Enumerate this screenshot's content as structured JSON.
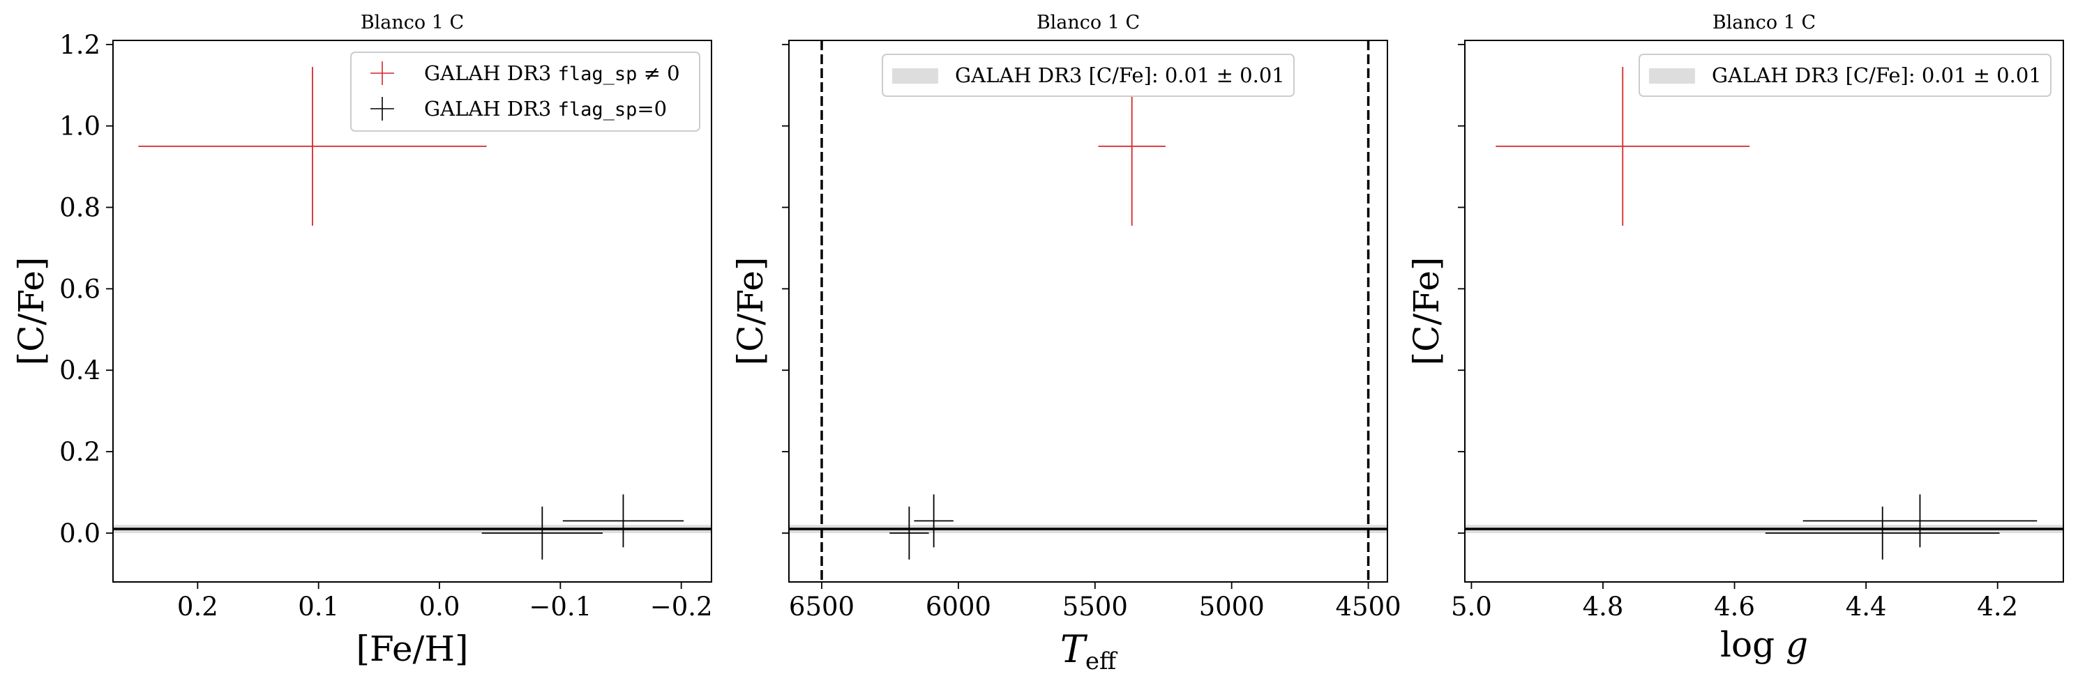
{
  "chart_data": [
    {
      "type": "scatter",
      "title": "Blanco 1 C",
      "xlabel": "[Fe/H]",
      "ylabel": "[C/Fe]",
      "xlim": [
        0.27,
        -0.225
      ],
      "ylim": [
        -0.12,
        1.21
      ],
      "xticks": [
        0.2,
        0.1,
        0.0,
        -0.1,
        -0.2
      ],
      "xtick_labels": [
        "0.2",
        "0.1",
        "0.0",
        "−0.1",
        "−0.2"
      ],
      "yticks": [
        0.0,
        0.2,
        0.4,
        0.6,
        0.8,
        1.0,
        1.2
      ],
      "ytick_labels": [
        "0.0",
        "0.2",
        "0.4",
        "0.6",
        "0.8",
        "1.0",
        "1.2"
      ],
      "show_yticklabels": true,
      "hline": 0.01,
      "hband": [
        0.0,
        0.02
      ],
      "vlines": [],
      "legend": {
        "placement": "top-right",
        "entries": [
          {
            "type": "cross",
            "color": "#d62728",
            "text": "GALAH DR3 ",
            "code": "flag_sp",
            "suffix": " ≠ 0"
          },
          {
            "type": "cross",
            "color": "#000000",
            "text": "GALAH DR3 ",
            "code": "flag_sp",
            "suffix": "=0"
          }
        ]
      },
      "series": [
        {
          "color": "#d62728",
          "points": [
            {
              "x": 0.105,
              "y": 0.95,
              "xerr": [
                0.144,
                0.144
              ],
              "yerr": [
                0.195,
                0.195
              ]
            }
          ]
        },
        {
          "color": "#000000",
          "points": [
            {
              "x": -0.085,
              "y": 0.0,
              "xerr": [
                0.05,
                0.05
              ],
              "yerr": [
                0.065,
                0.065
              ]
            },
            {
              "x": -0.152,
              "y": 0.03,
              "xerr": [
                0.05,
                0.05
              ],
              "yerr": [
                0.065,
                0.065
              ]
            }
          ]
        }
      ]
    },
    {
      "type": "scatter",
      "title": "Blanco 1 C",
      "xlabel": "T_eff",
      "ylabel": "[C/Fe]",
      "xlim": [
        6620,
        4430
      ],
      "ylim": [
        -0.12,
        1.21
      ],
      "xticks": [
        6500,
        6000,
        5500,
        5000,
        4500
      ],
      "xtick_labels": [
        "6500",
        "6000",
        "5500",
        "5000",
        "4500"
      ],
      "yticks": [
        0.0,
        0.2,
        0.4,
        0.6,
        0.8,
        1.0,
        1.2
      ],
      "ytick_labels": [
        "0.0",
        "0.2",
        "0.4",
        "0.6",
        "0.8",
        "1.0",
        "1.2"
      ],
      "show_yticklabels": false,
      "hline": 0.01,
      "hband": [
        0.0,
        0.02
      ],
      "vlines": [
        6500,
        4500
      ],
      "legend": {
        "placement": "top-center",
        "entries": [
          {
            "type": "band",
            "color": "#dddddd",
            "text": "GALAH DR3 [C/Fe]:  0.01 ± 0.01"
          }
        ]
      },
      "series": [
        {
          "color": "#d62728",
          "points": [
            {
              "x": 5365,
              "y": 0.95,
              "xerr": [
                123,
                123
              ],
              "yerr": [
                0.195,
                0.195
              ]
            }
          ]
        },
        {
          "color": "#000000",
          "points": [
            {
              "x": 6180,
              "y": 0.0,
              "xerr": [
                72,
                72
              ],
              "yerr": [
                0.065,
                0.065
              ]
            },
            {
              "x": 6090,
              "y": 0.03,
              "xerr": [
                72,
                72
              ],
              "yerr": [
                0.065,
                0.065
              ]
            }
          ]
        }
      ]
    },
    {
      "type": "scatter",
      "title": "Blanco 1 C",
      "xlabel": "log g",
      "ylabel": "[C/Fe]",
      "xlim": [
        5.01,
        4.1
      ],
      "ylim": [
        -0.12,
        1.21
      ],
      "xticks": [
        5.0,
        4.8,
        4.6,
        4.4,
        4.2
      ],
      "xtick_labels": [
        "5.0",
        "4.8",
        "4.6",
        "4.4",
        "4.2"
      ],
      "yticks": [
        0.0,
        0.2,
        0.4,
        0.6,
        0.8,
        1.0,
        1.2
      ],
      "ytick_labels": [
        "0.0",
        "0.2",
        "0.4",
        "0.6",
        "0.8",
        "1.0",
        "1.2"
      ],
      "show_yticklabels": false,
      "hline": 0.01,
      "hband": [
        0.0,
        0.02
      ],
      "vlines": [],
      "legend": {
        "placement": "top-right",
        "entries": [
          {
            "type": "band",
            "color": "#dddddd",
            "text": "GALAH DR3 [C/Fe]:  0.01 ± 0.01"
          }
        ]
      },
      "series": [
        {
          "color": "#d62728",
          "points": [
            {
              "x": 4.77,
              "y": 0.95,
              "xerr": [
                0.193,
                0.193
              ],
              "yerr": [
                0.195,
                0.195
              ]
            }
          ]
        },
        {
          "color": "#000000",
          "points": [
            {
              "x": 4.375,
              "y": 0.0,
              "xerr": [
                0.178,
                0.178
              ],
              "yerr": [
                0.065,
                0.065
              ]
            },
            {
              "x": 4.318,
              "y": 0.03,
              "xerr": [
                0.178,
                0.178
              ],
              "yerr": [
                0.065,
                0.065
              ]
            }
          ]
        }
      ]
    }
  ]
}
